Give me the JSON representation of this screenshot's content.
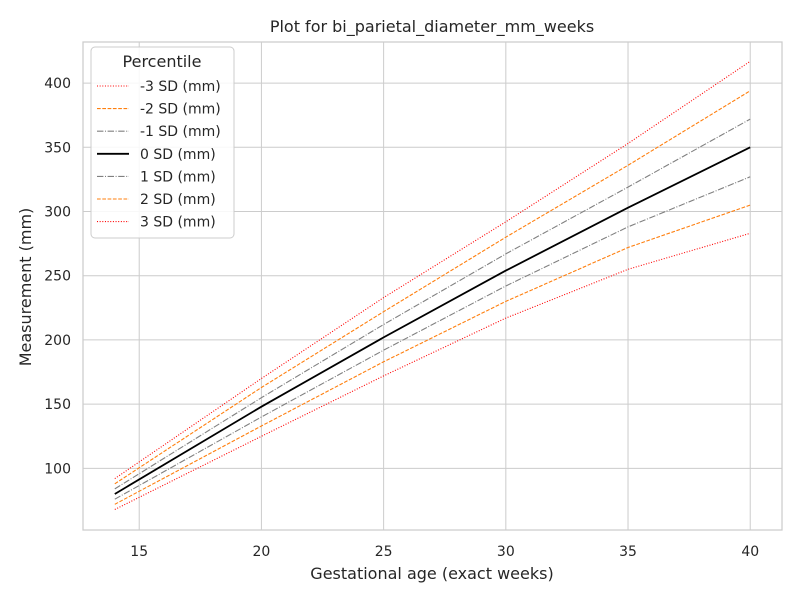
{
  "chart_data": {
    "type": "line",
    "title": "Plot for bi_parietal_diameter_mm_weeks",
    "xlabel": "Gestational age (exact weeks)",
    "ylabel": "Measurement (mm)",
    "xlim": [
      12.7,
      41.3
    ],
    "ylim": [
      52,
      432
    ],
    "xticks": [
      15,
      20,
      25,
      30,
      35,
      40
    ],
    "yticks": [
      100,
      150,
      200,
      250,
      300,
      350,
      400
    ],
    "grid": true,
    "legend_title": "Percentile",
    "legend_position": "top-left",
    "x": [
      14,
      20,
      25,
      30,
      35,
      40
    ],
    "series": [
      {
        "name": "-3 SD (mm)",
        "color": "#ff0000",
        "dash": "dotted",
        "values": [
          68,
          125,
          172,
          217,
          255,
          283
        ]
      },
      {
        "name": "-2 SD (mm)",
        "color": "#ff7f0e",
        "dash": "dashed",
        "values": [
          72,
          133,
          183,
          230,
          272,
          305
        ]
      },
      {
        "name": "-1 SD (mm)",
        "color": "#808080",
        "dash": "dashdot",
        "values": [
          76,
          140,
          192,
          242,
          288,
          327
        ]
      },
      {
        "name": "0 SD (mm)",
        "color": "#000000",
        "dash": "solid",
        "values": [
          80,
          148,
          202,
          254,
          303,
          350
        ]
      },
      {
        "name": "1 SD (mm)",
        "color": "#808080",
        "dash": "dashdot",
        "values": [
          84,
          155,
          212,
          267,
          319,
          372
        ]
      },
      {
        "name": "2 SD (mm)",
        "color": "#ff7f0e",
        "dash": "dashed",
        "values": [
          88,
          163,
          222,
          280,
          336,
          394
        ]
      },
      {
        "name": "3 SD (mm)",
        "color": "#ff0000",
        "dash": "dotted",
        "values": [
          92,
          170,
          233,
          292,
          353,
          417
        ]
      }
    ]
  }
}
